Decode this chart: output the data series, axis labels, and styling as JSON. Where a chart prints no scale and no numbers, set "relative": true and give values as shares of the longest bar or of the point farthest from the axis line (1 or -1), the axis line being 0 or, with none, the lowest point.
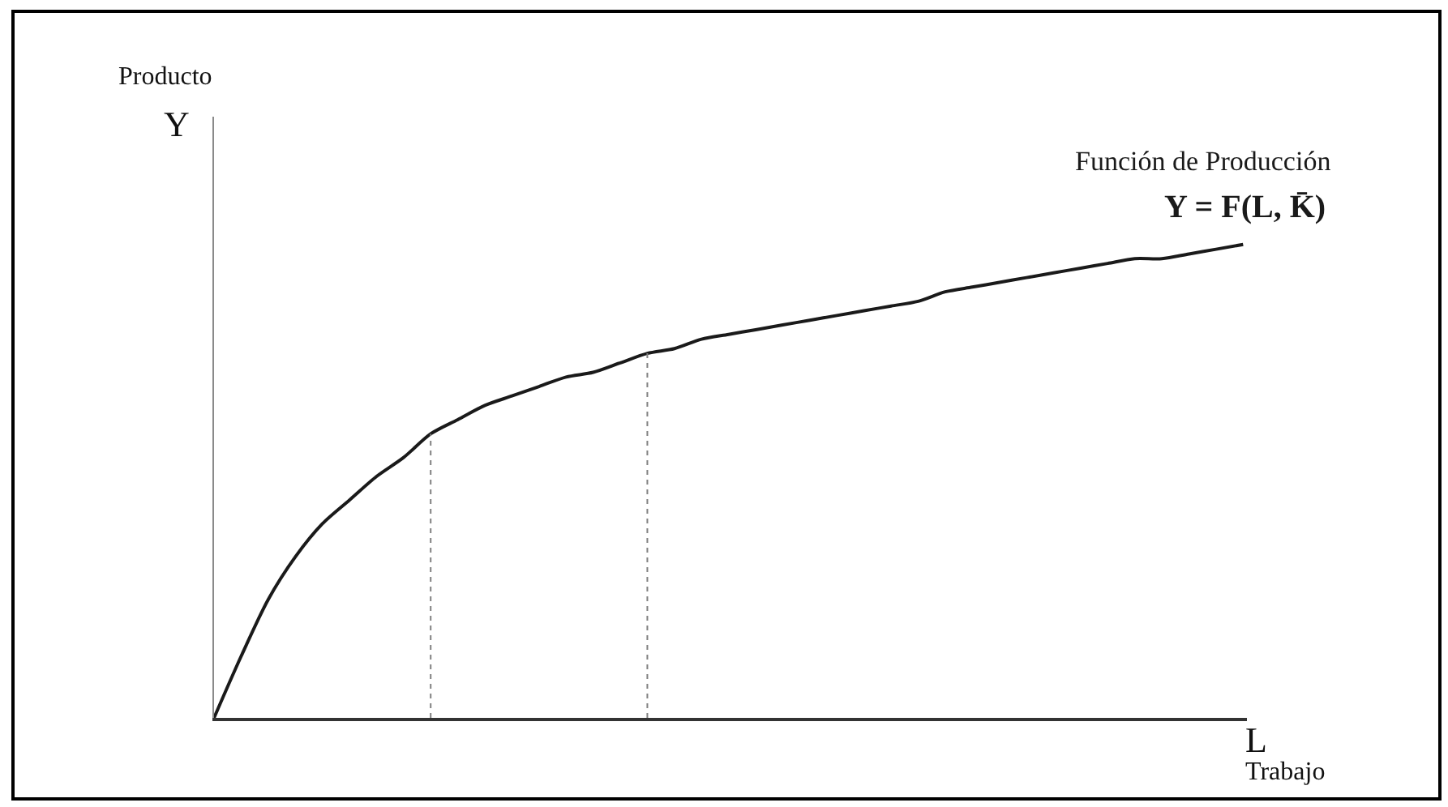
{
  "chart_data": {
    "type": "line",
    "relative": true,
    "ylabel": "Producto\nY",
    "xlabel": "L\nTrabajo",
    "line_style": "solid",
    "categories": [
      null,
      null,
      null,
      null,
      null,
      null,
      null,
      null,
      null,
      null,
      null,
      null,
      null,
      null,
      null,
      null,
      null,
      null,
      null,
      null,
      null,
      null,
      null,
      null,
      null,
      null,
      null,
      null,
      null,
      null,
      null,
      null,
      null,
      null,
      null,
      null,
      null,
      null,
      null
    ],
    "series": [
      {
        "name": "Función de Producción\nY = F(L, K̄)",
        "color": "#1a1a1a",
        "values": [
          0,
          0.13,
          0.25,
          0.34,
          0.41,
          0.46,
          0.51,
          0.55,
          0.6,
          0.63,
          0.66,
          0.68,
          0.7,
          0.72,
          0.73,
          0.75,
          0.77,
          0.78,
          0.8,
          0.81,
          0.82,
          0.83,
          0.84,
          0.85,
          0.86,
          0.87,
          0.88,
          0.9,
          0.91,
          0.92,
          0.93,
          0.94,
          0.95,
          0.96,
          0.97,
          0.97,
          0.98,
          0.99,
          1
        ]
      }
    ]
  }
}
